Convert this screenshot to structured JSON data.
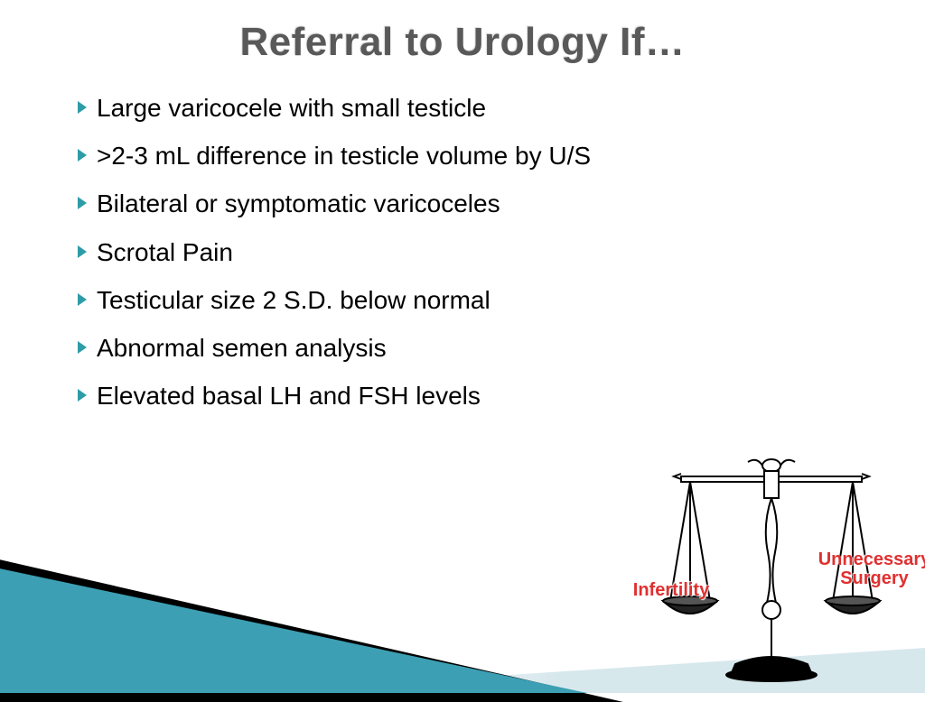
{
  "title": "Referral to Urology If…",
  "bullets": [
    "Large varicocele with small testicle",
    ">2-3 mL difference in testicle volume by U/S",
    "Bilateral or symptomatic varicoceles",
    "Scrotal Pain",
    "Testicular size 2 S.D. below normal",
    "Abnormal semen analysis",
    "Elevated basal LH and FSH levels"
  ],
  "scale": {
    "left_label": "Infertility",
    "right_label": "Unnecessary\nSurgery"
  },
  "colors": {
    "title_color": "#595959",
    "bullet_marker": "#2e9ca8",
    "text_color": "#000000",
    "accent_red": "#e03030",
    "triangle_teal": "#3d9fb3",
    "triangle_light": "#d7e8ed",
    "background": "#ffffff"
  },
  "typography": {
    "title_fontsize": 44,
    "bullet_fontsize": 28,
    "scale_label_fontsize": 20
  }
}
